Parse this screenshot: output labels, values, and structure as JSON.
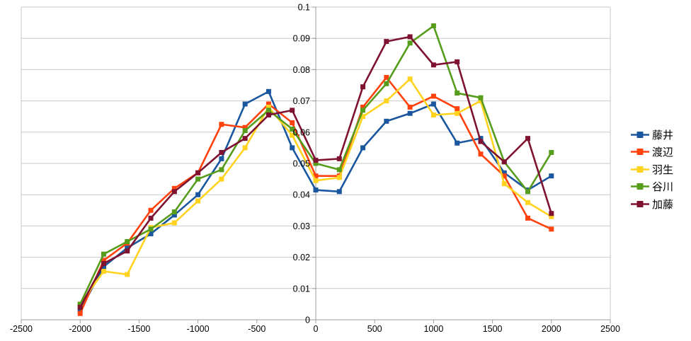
{
  "chart_data": {
    "type": "line",
    "title": "",
    "xlabel": "",
    "ylabel": "",
    "xlim": [
      -2500,
      2500
    ],
    "ylim": [
      0,
      0.1
    ],
    "grid": true,
    "legend_position": "right",
    "x_tick_labels": [
      "-2500",
      "-2000",
      "-1500",
      "-1000",
      "-500",
      "0",
      "500",
      "1000",
      "1500",
      "2000",
      "2500"
    ],
    "y_tick_labels": [
      "0",
      "0.01",
      "0.02",
      "0.03",
      "0.04",
      "0.05",
      "0.06",
      "0.07",
      "0.08",
      "0.09",
      "0.1"
    ],
    "x": [
      -2000,
      -1800,
      -1600,
      -1400,
      -1200,
      -1000,
      -800,
      -600,
      -400,
      -200,
      0,
      200,
      400,
      600,
      800,
      1000,
      1200,
      1400,
      1600,
      1800,
      2000
    ],
    "series": [
      {
        "name": "藤井",
        "color": "#1A579E",
        "values": [
          0.003,
          0.017,
          0.023,
          0.0275,
          0.0335,
          0.04,
          0.0515,
          0.069,
          0.073,
          0.055,
          0.0415,
          0.041,
          0.055,
          0.0635,
          0.066,
          0.069,
          0.0565,
          0.058,
          0.047,
          0.0415,
          0.046
        ]
      },
      {
        "name": "渡辺",
        "color": "#FF420E",
        "values": [
          0.002,
          0.019,
          0.0245,
          0.035,
          0.042,
          0.047,
          0.0625,
          0.0615,
          0.069,
          0.063,
          0.046,
          0.046,
          0.068,
          0.0775,
          0.068,
          0.0715,
          0.0675,
          0.053,
          0.046,
          0.0325,
          0.029
        ]
      },
      {
        "name": "羽生",
        "color": "#FFD320",
        "values": [
          0.005,
          0.0155,
          0.0145,
          0.0295,
          0.031,
          0.038,
          0.045,
          0.055,
          0.068,
          0.059,
          0.0445,
          0.0455,
          0.065,
          0.07,
          0.077,
          0.0655,
          0.066,
          0.07,
          0.0435,
          0.0375,
          0.033
        ]
      },
      {
        "name": "谷川",
        "color": "#579D1C",
        "values": [
          0.005,
          0.021,
          0.025,
          0.029,
          0.0345,
          0.045,
          0.048,
          0.0605,
          0.067,
          0.061,
          0.05,
          0.048,
          0.067,
          0.0755,
          0.0885,
          0.094,
          0.0725,
          0.071,
          0.0505,
          0.041,
          0.0535
        ]
      },
      {
        "name": "加藤",
        "color": "#7E1230",
        "values": [
          0.004,
          0.018,
          0.022,
          0.0325,
          0.041,
          0.047,
          0.0535,
          0.058,
          0.0655,
          0.067,
          0.051,
          0.0515,
          0.0745,
          0.089,
          0.0905,
          0.0815,
          0.0825,
          0.057,
          0.0505,
          0.058,
          0.034
        ]
      }
    ],
    "colors": {
      "gridline": "#C9C9C9",
      "axis": "#9E9E9E",
      "text": "#000000",
      "background": "#FFFFFF"
    }
  }
}
